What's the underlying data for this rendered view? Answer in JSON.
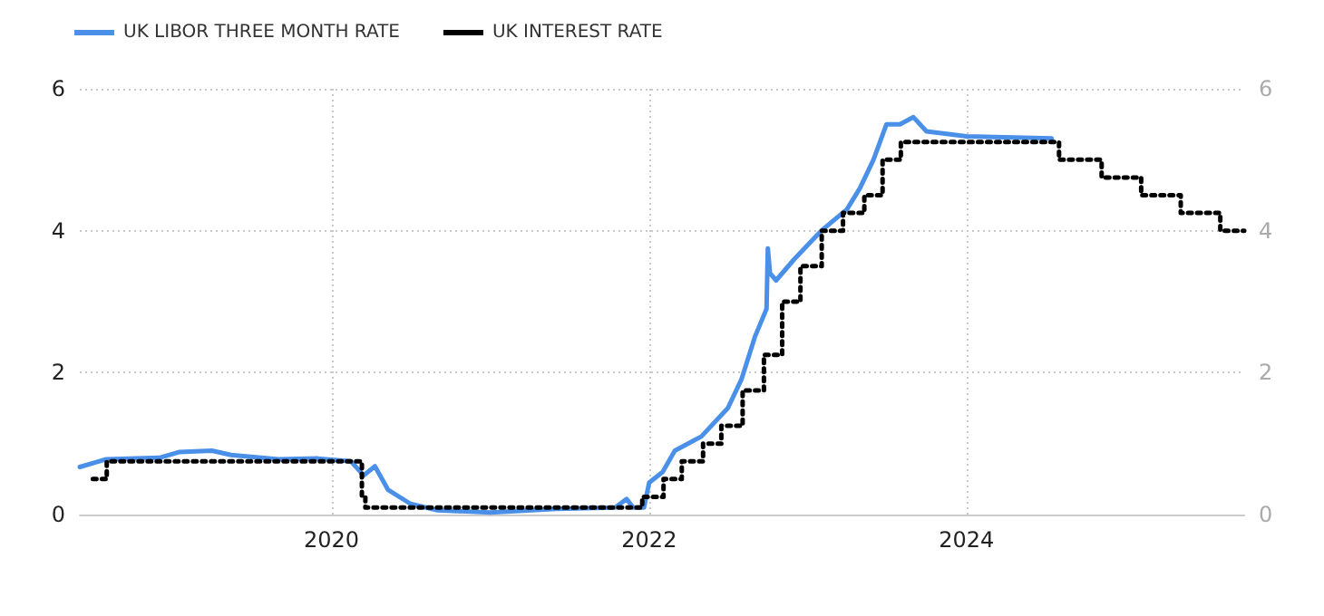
{
  "chart_data": {
    "type": "line",
    "xlim": [
      "2018-06-01",
      "2025-10-01"
    ],
    "xticks": [
      {
        "value": "2020-01-01",
        "label": "2020"
      },
      {
        "value": "2022-01-01",
        "label": "2022"
      },
      {
        "value": "2024-01-01",
        "label": "2024"
      }
    ],
    "ylim": [
      0,
      6
    ],
    "yticks": [
      0,
      2,
      4,
      6
    ],
    "y2lim": [
      0,
      6
    ],
    "y2ticks": [
      0,
      2,
      4,
      6
    ],
    "grid": true,
    "legend": "top left",
    "marker": "none",
    "series": [
      {
        "name": "UK LIBOR THREE MONTH RATE",
        "color": "#4a90e8",
        "line_style": "solid",
        "x": [
          "2018-06-01",
          "2018-08-01",
          "2018-12-01",
          "2019-01-15",
          "2019-04-01",
          "2019-05-15",
          "2019-09-01",
          "2019-12-01",
          "2020-02-15",
          "2020-03-15",
          "2020-04-10",
          "2020-05-10",
          "2020-07-01",
          "2020-09-01",
          "2021-01-01",
          "2021-06-01",
          "2021-10-15",
          "2021-11-10",
          "2021-11-25",
          "2021-12-20",
          "2022-01-01",
          "2022-02-01",
          "2022-03-01",
          "2022-05-01",
          "2022-07-01",
          "2022-08-01",
          "2022-09-01",
          "2022-09-28",
          "2022-10-01",
          "2022-10-06",
          "2022-10-20",
          "2022-12-01",
          "2023-02-01",
          "2023-04-01",
          "2023-05-01",
          "2023-06-01",
          "2023-07-01",
          "2023-08-01",
          "2023-09-01",
          "2023-10-01",
          "2024-01-01",
          "2024-07-15"
        ],
        "values": [
          0.67,
          0.78,
          0.8,
          0.88,
          0.9,
          0.84,
          0.78,
          0.79,
          0.75,
          0.55,
          0.68,
          0.35,
          0.15,
          0.06,
          0.03,
          0.08,
          0.1,
          0.22,
          0.1,
          0.1,
          0.45,
          0.6,
          0.9,
          1.1,
          1.5,
          1.9,
          2.5,
          2.9,
          3.75,
          3.4,
          3.3,
          3.6,
          4.0,
          4.3,
          4.6,
          5.0,
          5.5,
          5.5,
          5.6,
          5.4,
          5.33,
          5.3
        ]
      },
      {
        "name": "UK INTEREST RATE",
        "color": "#000000",
        "type": "step",
        "line_style": "dotted",
        "x": [
          "2018-07-01",
          "2018-08-02",
          "2020-03-11",
          "2020-03-19",
          "2021-12-16",
          "2022-02-03",
          "2022-03-17",
          "2022-05-05",
          "2022-06-16",
          "2022-08-04",
          "2022-09-22",
          "2022-11-03",
          "2022-12-15",
          "2023-02-02",
          "2023-03-23",
          "2023-05-11",
          "2023-06-22",
          "2023-08-03",
          "2024-08-01",
          "2024-11-07",
          "2025-02-06",
          "2025-05-08",
          "2025-08-07",
          "2025-10-01"
        ],
        "values": [
          0.5,
          0.75,
          0.25,
          0.1,
          0.25,
          0.5,
          0.75,
          1.0,
          1.25,
          1.75,
          2.25,
          3.0,
          3.5,
          4.0,
          4.25,
          4.5,
          5.0,
          5.25,
          5.0,
          4.75,
          4.5,
          4.25,
          4.0,
          4.0
        ]
      }
    ]
  }
}
